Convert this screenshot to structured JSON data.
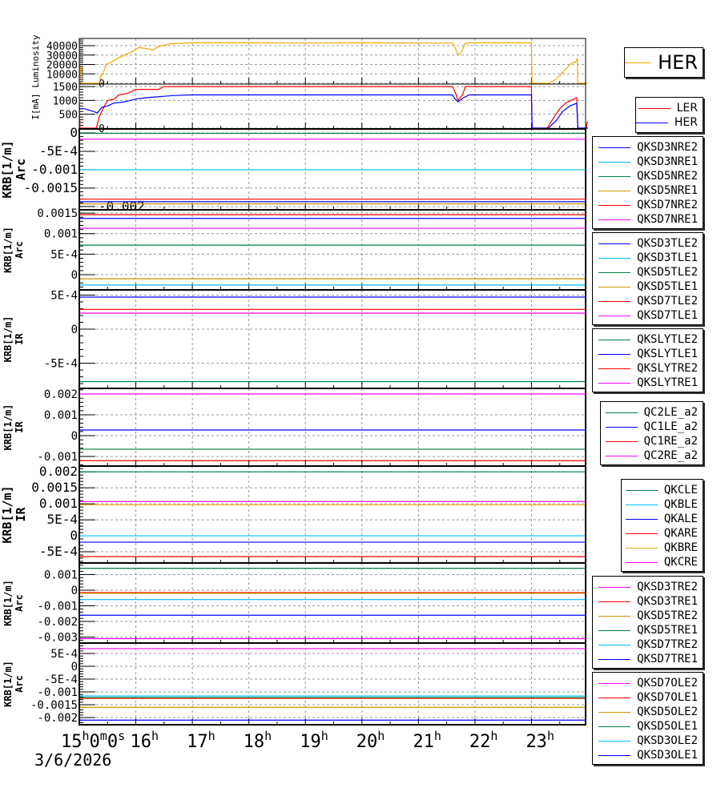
{
  "colors": {
    "her_lum": "#f0a800",
    "red": "#ff0000",
    "blue": "#0000ff",
    "cyan": "#00c0ff",
    "green": "#008040",
    "gold": "#c89600",
    "magenta": "#ff00ff"
  },
  "x_axis": {
    "range_hours": [
      15,
      24
    ],
    "ticks": [
      {
        "h": 15,
        "label": "15h0m0s"
      },
      {
        "h": 16,
        "label": "16h"
      },
      {
        "h": 17,
        "label": "17h"
      },
      {
        "h": 18,
        "label": "18h"
      },
      {
        "h": 19,
        "label": "19h"
      },
      {
        "h": 20,
        "label": "20h"
      },
      {
        "h": 21,
        "label": "21h"
      },
      {
        "h": 22,
        "label": "22h"
      },
      {
        "h": 23,
        "label": "23h"
      }
    ],
    "date": "3/6/2026"
  },
  "chart_data": [
    {
      "type": "line",
      "ylabel": [
        "Luminosity"
      ],
      "ylim": [
        -850,
        47700
      ],
      "yticks": [
        {
          "v": 0,
          "label": "0"
        },
        {
          "v": 10000,
          "label": "10000"
        },
        {
          "v": 20000,
          "label": "20000"
        },
        {
          "v": 30000,
          "label": "30000"
        },
        {
          "v": 40000,
          "label": "40000"
        }
      ],
      "legend": "big",
      "series": [
        {
          "name": "HER",
          "color": "#f0a800",
          "points": [
            [
              15,
              17000
            ],
            [
              15.02,
              17000
            ],
            [
              15.04,
              0
            ],
            [
              15.35,
              0
            ],
            [
              15.38,
              8000
            ],
            [
              15.42,
              10000
            ],
            [
              15.47,
              20000
            ],
            [
              15.55,
              22000
            ],
            [
              15.7,
              27000
            ],
            [
              15.8,
              30000
            ],
            [
              15.95,
              34000
            ],
            [
              16.05,
              38000
            ],
            [
              16.2,
              37000
            ],
            [
              16.3,
              35000
            ],
            [
              16.4,
              39000
            ],
            [
              16.6,
              42000
            ],
            [
              17,
              43000
            ],
            [
              18,
              43000
            ],
            [
              19,
              42800
            ],
            [
              20,
              43000
            ],
            [
              21,
              42800
            ],
            [
              21.6,
              42800
            ],
            [
              21.65,
              38000
            ],
            [
              21.7,
              30000
            ],
            [
              21.76,
              33000
            ],
            [
              21.82,
              42000
            ],
            [
              21.9,
              43000
            ],
            [
              22.5,
              43000
            ],
            [
              23.0,
              43000
            ],
            [
              23.01,
              0
            ],
            [
              23.3,
              0
            ],
            [
              23.4,
              3000
            ],
            [
              23.5,
              8000
            ],
            [
              23.6,
              15000
            ],
            [
              23.7,
              21000
            ],
            [
              23.78,
              23000
            ],
            [
              23.81,
              26000
            ],
            [
              23.82,
              0
            ],
            [
              24,
              0
            ]
          ]
        }
      ]
    },
    {
      "type": "line",
      "ylabel": [
        "I[mA]"
      ],
      "ylim": [
        -30,
        1590
      ],
      "yticks": [
        {
          "v": 0,
          "label": "0"
        },
        {
          "v": 500,
          "label": "500"
        },
        {
          "v": 1000,
          "label": "1000"
        },
        {
          "v": 1500,
          "label": "1500"
        }
      ],
      "legend": "sans",
      "series": [
        {
          "name": "LER",
          "color": "#ff0000",
          "points": [
            [
              15,
              900
            ],
            [
              15.01,
              0
            ],
            [
              15.3,
              0
            ],
            [
              15.35,
              400
            ],
            [
              15.42,
              700
            ],
            [
              15.5,
              1000
            ],
            [
              15.62,
              1050
            ],
            [
              15.7,
              1200
            ],
            [
              15.85,
              1250
            ],
            [
              16.0,
              1400
            ],
            [
              16.4,
              1400
            ],
            [
              16.5,
              1500
            ],
            [
              21.6,
              1500
            ],
            [
              21.65,
              1300
            ],
            [
              21.7,
              1000
            ],
            [
              21.78,
              1200
            ],
            [
              21.83,
              1500
            ],
            [
              23.0,
              1500
            ],
            [
              23.01,
              0
            ],
            [
              23.28,
              0
            ],
            [
              23.4,
              400
            ],
            [
              23.5,
              700
            ],
            [
              23.6,
              900
            ],
            [
              23.7,
              1000
            ],
            [
              23.8,
              1100
            ],
            [
              23.82,
              0
            ],
            [
              23.97,
              0
            ],
            [
              23.98,
              200
            ],
            [
              24,
              200
            ]
          ]
        },
        {
          "name": "HER",
          "color": "#0000ff",
          "points": [
            [
              15,
              700
            ],
            [
              15.1,
              700
            ],
            [
              15.25,
              600
            ],
            [
              15.32,
              550
            ],
            [
              15.4,
              750
            ],
            [
              15.5,
              800
            ],
            [
              15.6,
              900
            ],
            [
              15.8,
              950
            ],
            [
              16.0,
              1050
            ],
            [
              16.2,
              1100
            ],
            [
              16.5,
              1150
            ],
            [
              16.7,
              1180
            ],
            [
              17,
              1200
            ],
            [
              21.6,
              1200
            ],
            [
              21.65,
              1050
            ],
            [
              21.7,
              950
            ],
            [
              21.8,
              1100
            ],
            [
              21.9,
              1200
            ],
            [
              23.0,
              1200
            ],
            [
              23.01,
              0
            ],
            [
              23.3,
              0
            ],
            [
              23.45,
              300
            ],
            [
              23.55,
              600
            ],
            [
              23.68,
              800
            ],
            [
              23.8,
              900
            ],
            [
              23.82,
              0
            ],
            [
              24,
              0
            ]
          ]
        }
      ]
    },
    {
      "type": "line",
      "ylabel": [
        "KRB[1/m]",
        "Arc"
      ],
      "ylim": [
        -0.00209,
        0.000109
      ],
      "yticks": [
        {
          "v": 0,
          "label": "0"
        },
        {
          "v": -0.0005,
          "label": "-5E-4"
        },
        {
          "v": -0.001,
          "label": "-0.001"
        },
        {
          "v": -0.0015,
          "label": "-0.0015"
        },
        {
          "v": -0.002,
          "label": "-0.002"
        }
      ],
      "series": [
        {
          "name": "QKSD3NRE2",
          "color": "#0000ff",
          "value": -0.00187
        },
        {
          "name": "QKSD3NRE1",
          "color": "#00c0ff",
          "value": -0.001
        },
        {
          "name": "QKSD5NRE2",
          "color": "#008040",
          "value": -1e-05
        },
        {
          "name": "QKSD5NRE1",
          "color": "#c89600",
          "value": -0.00193
        },
        {
          "name": "QKSD7NRE2",
          "color": "#ff0000",
          "value": -0.0018
        },
        {
          "name": "QKSD7NRE1",
          "color": "#ff00ff",
          "value": -0.00017
        }
      ]
    },
    {
      "type": "line",
      "ylabel": [
        "KRB[1/m]",
        "Arc"
      ],
      "ylim": [
        -0.00037,
        0.00158
      ],
      "yticks": [
        {
          "v": 0,
          "label": "0"
        },
        {
          "v": 0.0005,
          "label": "5E-4"
        },
        {
          "v": 0.001,
          "label": "0.001"
        },
        {
          "v": 0.0015,
          "label": "0.0015"
        }
      ],
      "series": [
        {
          "name": "QKSD3TLE2",
          "color": "#0000ff",
          "value": 0.00137
        },
        {
          "name": "QKSD3TLE1",
          "color": "#00c0ff",
          "value": -0.00025
        },
        {
          "name": "QKSD5TLE2",
          "color": "#008040",
          "value": 0.00072
        },
        {
          "name": "QKSD5TLE1",
          "color": "#c89600",
          "value": -0.0001
        },
        {
          "name": "QKSD7TLE2",
          "color": "#ff0000",
          "value": 0.00146
        },
        {
          "name": "QKSD7TLE1",
          "color": "#ff00ff",
          "value": 0.00113
        }
      ]
    },
    {
      "type": "line",
      "ylabel": [
        "KRB[1/m]",
        "IR"
      ],
      "ylim": [
        -0.00087,
        0.000576
      ],
      "yticks": [
        {
          "v": 0.0005,
          "label": "5E-4"
        },
        {
          "v": 0,
          "label": "0"
        },
        {
          "v": -0.0005,
          "label": "-5E-4"
        }
      ],
      "series": [
        {
          "name": "QKSLYTLE2",
          "color": "#008040",
          "value": -0.00077
        },
        {
          "name": "QKSLYTLE1",
          "color": "#0000ff",
          "value": 0.00047
        },
        {
          "name": "QKSLYTRE2",
          "color": "#ff0000",
          "value": 0.00029
        },
        {
          "name": "QKSLYTRE1",
          "color": "#ff00ff",
          "value": 0.000235
        }
      ]
    },
    {
      "type": "line",
      "ylabel": [
        "KRB[1/m]",
        "IR"
      ],
      "ylim": [
        -0.00146,
        0.00227
      ],
      "yticks": [
        {
          "v": 0.002,
          "label": "0.002"
        },
        {
          "v": 0.001,
          "label": "0.001"
        },
        {
          "v": 0,
          "label": "0"
        },
        {
          "v": -0.001,
          "label": "-0.001"
        }
      ],
      "series": [
        {
          "name": "QC2LE_a2",
          "color": "#008040",
          "value": -0.00065
        },
        {
          "name": "QC1LE_a2",
          "color": "#0000ff",
          "value": 0.00027
        },
        {
          "name": "QC1RE_a2",
          "color": "#ff0000",
          "value": -0.0012
        },
        {
          "name": "QC2RE_a2",
          "color": "#ff00ff",
          "value": 0.002
        }
      ]
    },
    {
      "type": "line",
      "ylabel": [
        "KRB[1/m]",
        "IR"
      ],
      "ylim": [
        -0.00085,
        0.00218
      ],
      "yticks": [
        {
          "v": 0.002,
          "label": "0.002"
        },
        {
          "v": 0.0015,
          "label": "0.0015"
        },
        {
          "v": 0.001,
          "label": "0.001"
        },
        {
          "v": 0.0005,
          "label": "5E-4"
        },
        {
          "v": 0,
          "label": "0"
        },
        {
          "v": -0.0005,
          "label": "-5E-4"
        }
      ],
      "series": [
        {
          "name": "QKCLE",
          "color": "#008040",
          "value": 0.002
        },
        {
          "name": "QKBLE",
          "color": "#00c0ff",
          "value": 0
        },
        {
          "name": "QKALE",
          "color": "#0000ff",
          "value": -0.0002
        },
        {
          "name": "QKARE",
          "color": "#ff0000",
          "value": -0.00065
        },
        {
          "name": "QKBRE",
          "color": "#f0a800",
          "value": 0.00097
        },
        {
          "name": "QKCRE",
          "color": "#ff00ff",
          "value": 0.00107
        }
      ]
    },
    {
      "type": "line",
      "ylabel": [
        "KRB[1/m]",
        "Arc"
      ],
      "ylim": [
        -0.00338,
        0.00174
      ],
      "yticks": [
        {
          "v": 0.001,
          "label": "0.001"
        },
        {
          "v": 0,
          "label": "0"
        },
        {
          "v": -0.001,
          "label": "-0.001"
        },
        {
          "v": -0.002,
          "label": "-0.002"
        },
        {
          "v": -0.003,
          "label": "-0.003"
        }
      ],
      "series": [
        {
          "name": "QKSD3TRE2",
          "color": "#ff00ff",
          "value": -0.0031
        },
        {
          "name": "QKSD3TRE1",
          "color": "#ff0000",
          "value": -0.00015
        },
        {
          "name": "QKSD5TRE2",
          "color": "#c89600",
          "value": -0.0002
        },
        {
          "name": "QKSD5TRE1",
          "color": "#008040",
          "value": 0.0014
        },
        {
          "name": "QKSD7TRE2",
          "color": "#00c0ff",
          "value": -0.0006
        },
        {
          "name": "QKSD7TRE1",
          "color": "#0000ff",
          "value": -0.0016
        }
      ]
    },
    {
      "type": "line",
      "ylabel": [
        "KRB[1/m]",
        "Arc"
      ],
      "ylim": [
        -0.00228,
        0.000906
      ],
      "yticks": [
        {
          "v": 0.0005,
          "label": "5E-4"
        },
        {
          "v": 0,
          "label": "0"
        },
        {
          "v": -0.0005,
          "label": "-5E-4"
        },
        {
          "v": -0.001,
          "label": "-0.001"
        },
        {
          "v": -0.0015,
          "label": "-0.0015"
        },
        {
          "v": -0.002,
          "label": "-0.002"
        }
      ],
      "series": [
        {
          "name": "QKSD7OLE2",
          "color": "#ff00ff",
          "value": 0.00069
        },
        {
          "name": "QKSD7OLE1",
          "color": "#ff0000",
          "value": -0.00125
        },
        {
          "name": "QKSD5OLE2",
          "color": "#c89600",
          "value": -0.0016
        },
        {
          "name": "QKSD5OLE1",
          "color": "#008040",
          "value": -0.00122
        },
        {
          "name": "QKSD3OLE2",
          "color": "#00c0ff",
          "value": -0.00116
        },
        {
          "name": "QKSD3OLE1",
          "color": "#0000ff",
          "value": -0.0021
        }
      ]
    }
  ]
}
